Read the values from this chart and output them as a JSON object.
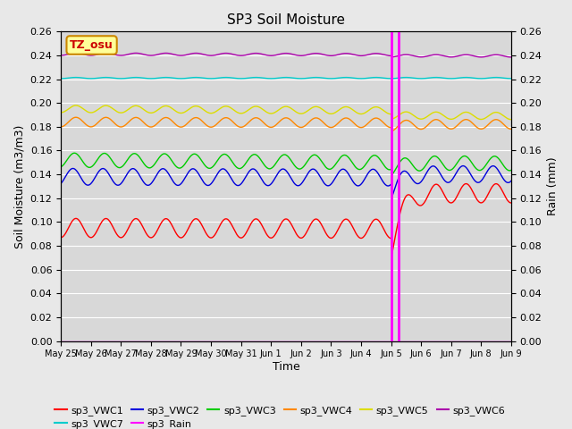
{
  "title": "SP3 Soil Moisture",
  "ylabel_left": "Soil Moisture (m3/m3)",
  "ylabel_right": "Rain (mm)",
  "xlabel": "Time",
  "ylim": [
    0.0,
    0.26
  ],
  "fig_bg_color": "#e8e8e8",
  "plot_bg_color": "#d8d8d8",
  "tick_labels": [
    "May 25",
    "May 26",
    "May 27",
    "May 28",
    "May 29",
    "May 30",
    "May 31",
    "Jun 1",
    "Jun 2",
    "Jun 3",
    "Jun 4",
    "Jun 5",
    "Jun 6",
    "Jun 7",
    "Jun 8",
    "Jun 9"
  ],
  "rain_spike1_day": 11.02,
  "rain_spike2_day": 11.25,
  "series": {
    "sp3_VWC1": {
      "color": "#ff0000",
      "base": 0.095,
      "amp": 0.008,
      "period": 1.0,
      "phase": 0.5,
      "trend": -0.001,
      "drop_day": 11.02,
      "drop": -0.015,
      "recover_rate": 3.0,
      "recover_amount": 0.045
    },
    "sp3_VWC2": {
      "color": "#0000dd",
      "base": 0.138,
      "amp": 0.007,
      "period": 1.0,
      "phase": 0.3,
      "trend": -0.001,
      "drop_day": 11.02,
      "drop": -0.012,
      "recover_rate": 3.0,
      "recover_amount": 0.015
    },
    "sp3_VWC3": {
      "color": "#00cc00",
      "base": 0.152,
      "amp": 0.006,
      "period": 1.0,
      "phase": 0.4,
      "trend": -0.003,
      "drop_day": 11.02,
      "drop": -0.005,
      "recover_rate": 2.0,
      "recover_amount": 0.005
    },
    "sp3_VWC4": {
      "color": "#ff8800",
      "base": 0.184,
      "amp": 0.004,
      "period": 1.0,
      "phase": 0.5,
      "trend": -0.001,
      "drop_day": 11.02,
      "drop": -0.003,
      "recover_rate": 2.0,
      "recover_amount": 0.002
    },
    "sp3_VWC5": {
      "color": "#dddd00",
      "base": 0.195,
      "amp": 0.003,
      "period": 1.0,
      "phase": 0.5,
      "trend": -0.002,
      "drop_day": 11.02,
      "drop": -0.004,
      "recover_rate": 2.0,
      "recover_amount": 0.0
    },
    "sp3_VWC6": {
      "color": "#aa00aa",
      "base": 0.241,
      "amp": 0.001,
      "period": 1.0,
      "phase": 0.5,
      "trend": -0.0005,
      "drop_day": 11.02,
      "drop": -0.001,
      "recover_rate": 1.0,
      "recover_amount": 0.0
    },
    "sp3_VWC7": {
      "color": "#00cccc",
      "base": 0.221,
      "amp": 0.0005,
      "period": 1.0,
      "phase": 0.5,
      "trend": 0.0,
      "drop_day": 11.02,
      "drop": 0.0,
      "recover_rate": 1.0,
      "recover_amount": 0.0
    }
  },
  "legend": [
    {
      "label": "sp3_VWC1",
      "color": "#ff0000"
    },
    {
      "label": "sp3_VWC2",
      "color": "#0000dd"
    },
    {
      "label": "sp3_VWC3",
      "color": "#00cc00"
    },
    {
      "label": "sp3_VWC4",
      "color": "#ff8800"
    },
    {
      "label": "sp3_VWC5",
      "color": "#dddd00"
    },
    {
      "label": "sp3_VWC6",
      "color": "#aa00aa"
    },
    {
      "label": "sp3_VWC7",
      "color": "#00cccc"
    },
    {
      "label": "sp3_Rain",
      "color": "#ff00ff"
    }
  ],
  "tz_label": "TZ_osu",
  "tz_box_color": "#ffff99",
  "tz_border_color": "#cc8800"
}
